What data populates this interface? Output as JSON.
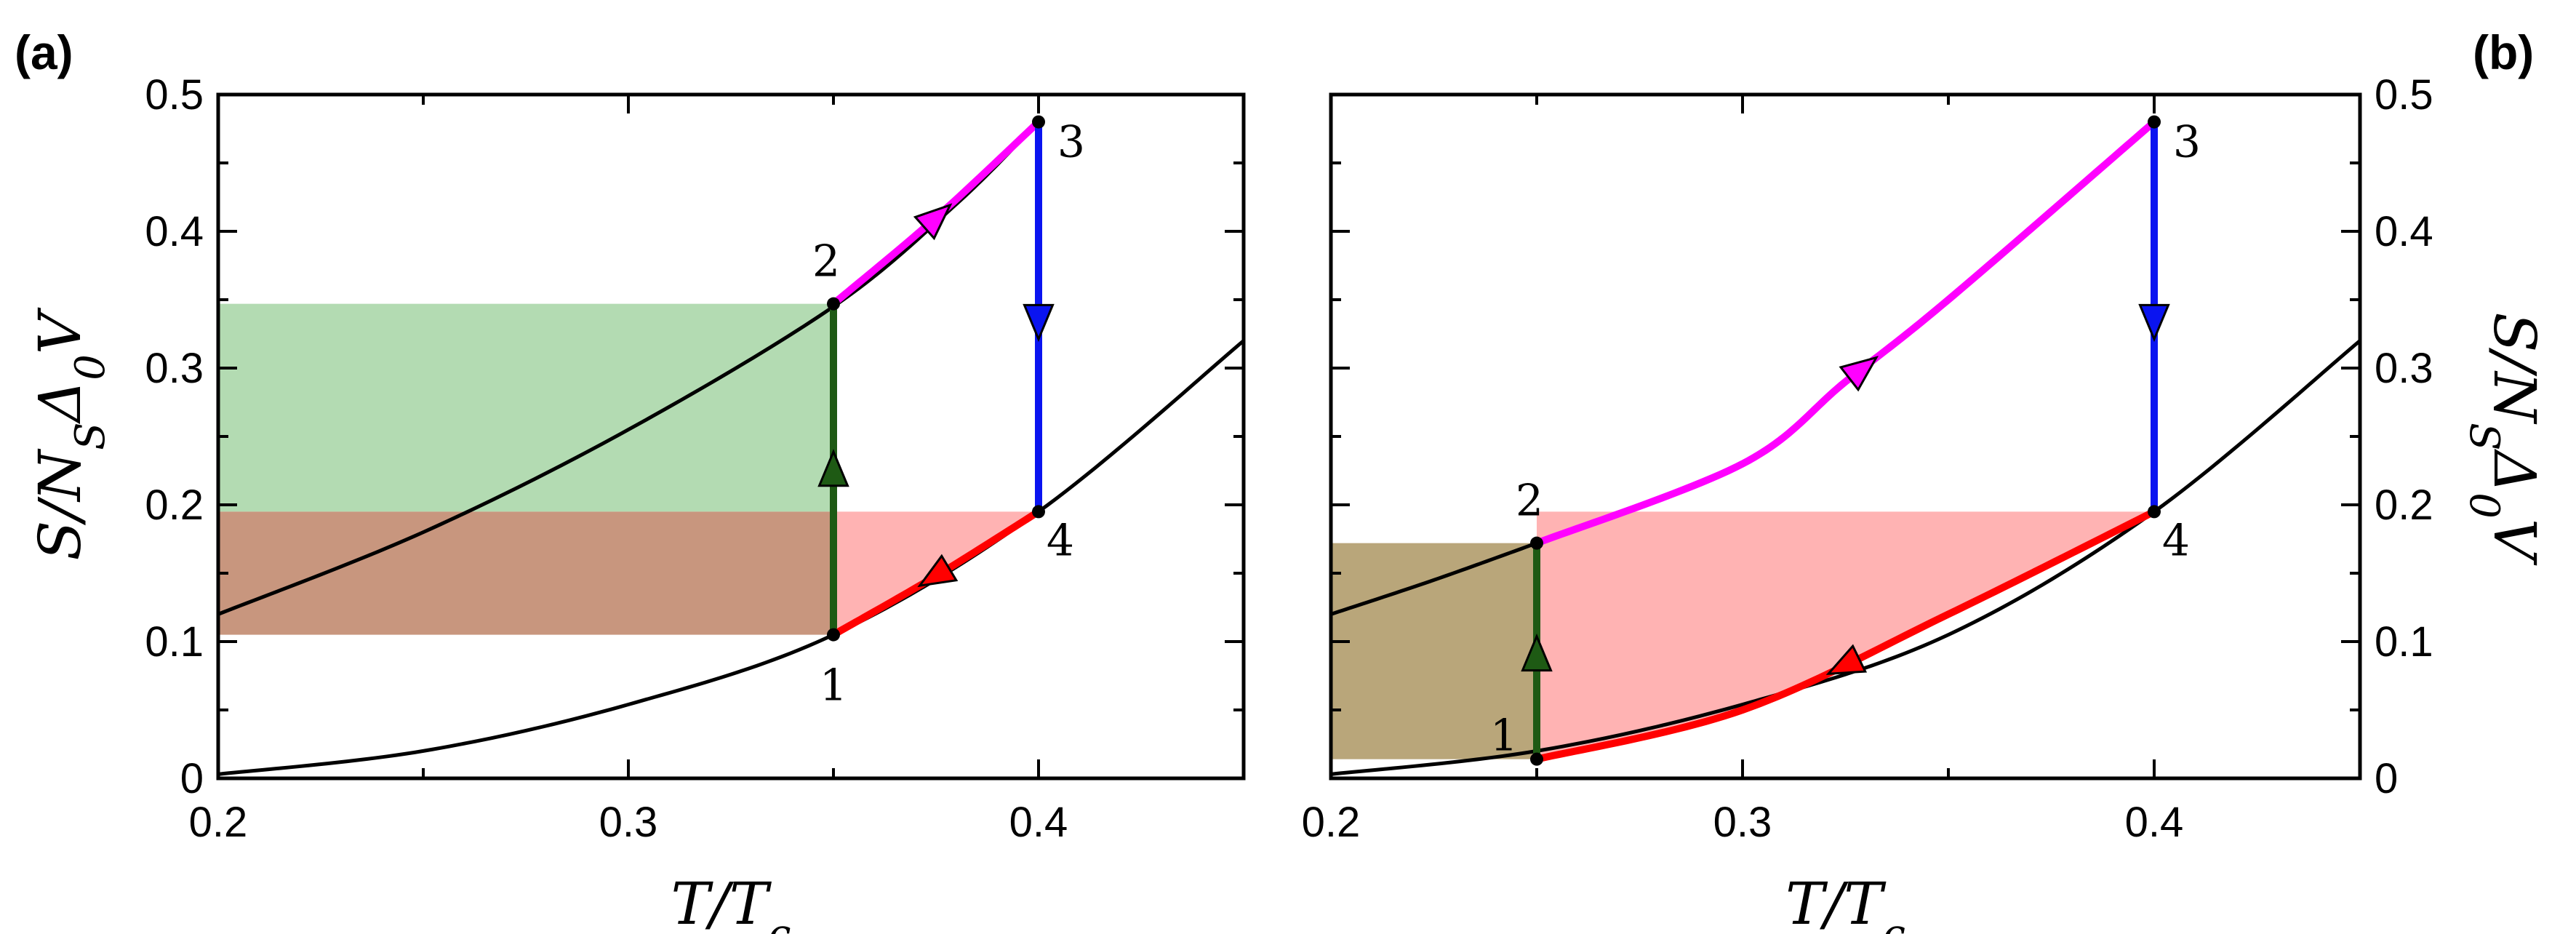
{
  "chart_data": [
    {
      "type": "line",
      "panel_label": "(a)",
      "xlabel": "T/T_c",
      "ylabel": "S/N_SΔ_0V",
      "xlim": [
        0.2,
        0.45
      ],
      "ylim": [
        0,
        0.5
      ],
      "xticks": [
        "0.2",
        "0.3",
        "0.4"
      ],
      "yticks": [
        "0",
        "0.1",
        "0.2",
        "0.3",
        "0.4",
        "0.5"
      ],
      "background_curves": [
        {
          "name": "",
          "x": [
            0.2,
            0.25,
            0.3,
            0.35,
            0.4,
            0.45
          ],
          "y": [
            0.003,
            0.02,
            0.054,
            0.105,
            0.195,
            0.32
          ]
        },
        {
          "name": "",
          "x": [
            0.2,
            0.25,
            0.3,
            0.35,
            0.38,
            0.4
          ],
          "y": [
            0.12,
            0.18,
            0.255,
            0.345,
            0.42,
            0.48
          ]
        }
      ],
      "cycle_segments": [
        {
          "from": "1",
          "to": "2",
          "color": "#1e5a14",
          "x": [
            0.35,
            0.35
          ],
          "y": [
            0.105,
            0.347
          ],
          "arrow_at": 0.225,
          "arrow_dir": "up"
        },
        {
          "from": "2",
          "to": "3",
          "color": "#ff00ff",
          "x": [
            0.35,
            0.375,
            0.4
          ],
          "y": [
            0.347,
            0.41,
            0.48
          ],
          "arrow_at": 0.5,
          "arrow_dir": "forward"
        },
        {
          "from": "3",
          "to": "4",
          "color": "#0a14f0",
          "x": [
            0.4,
            0.4
          ],
          "y": [
            0.48,
            0.195
          ],
          "arrow_at": 0.335,
          "arrow_dir": "down"
        },
        {
          "from": "4",
          "to": "1",
          "color": "#ff0000",
          "x": [
            0.4,
            0.375,
            0.35
          ],
          "y": [
            0.195,
            0.148,
            0.105
          ],
          "arrow_at": 0.5,
          "arrow_dir": "backward"
        }
      ],
      "points": [
        {
          "label": "1",
          "x": 0.35,
          "y": 0.105
        },
        {
          "label": "2",
          "x": 0.35,
          "y": 0.347
        },
        {
          "label": "3",
          "x": 0.4,
          "y": 0.48
        },
        {
          "label": "4",
          "x": 0.4,
          "y": 0.195
        }
      ],
      "shaded_regions": [
        {
          "color": "#b3dbb2",
          "x": [
            0.2,
            0.35
          ],
          "y": [
            0.195,
            0.347
          ]
        },
        {
          "color": "#c8967e",
          "x": [
            0.2,
            0.35
          ],
          "y": [
            0.105,
            0.195
          ]
        },
        {
          "color": "#ffb3b3",
          "kind": "under-path",
          "x_from": 0.35,
          "x_to": 0.4,
          "top": 0.195
        }
      ]
    },
    {
      "type": "line",
      "panel_label": "(b)",
      "xlabel": "T/T_c",
      "ylabel": "S/N_SΔ_0V",
      "xlim": [
        0.2,
        0.45
      ],
      "ylim": [
        0,
        0.5
      ],
      "xticks": [
        "0.2",
        "0.3",
        "0.4"
      ],
      "yticks": [
        "0",
        "0.1",
        "0.2",
        "0.3",
        "0.4",
        "0.5"
      ],
      "background_curves": [
        {
          "name": "",
          "x": [
            0.2,
            0.25,
            0.3,
            0.35,
            0.4,
            0.45
          ],
          "y": [
            0.003,
            0.02,
            0.054,
            0.105,
            0.195,
            0.32
          ]
        },
        {
          "name": "",
          "x": [
            0.2,
            0.225,
            0.25
          ],
          "y": [
            0.12,
            0.145,
            0.172
          ]
        }
      ],
      "cycle_segments": [
        {
          "from": "1",
          "to": "2",
          "color": "#1e5a14",
          "x": [
            0.25,
            0.25
          ],
          "y": [
            0.014,
            0.172
          ],
          "arrow_at": 0.09,
          "arrow_dir": "up"
        },
        {
          "from": "2",
          "to": "3",
          "color": "#ff00ff",
          "x": [
            0.25,
            0.3,
            0.325,
            0.35,
            0.4
          ],
          "y": [
            0.172,
            0.23,
            0.29,
            0.35,
            0.48
          ],
          "arrow_at": 0.55,
          "arrow_dir": "forward"
        },
        {
          "from": "3",
          "to": "4",
          "color": "#0a14f0",
          "x": [
            0.4,
            0.4
          ],
          "y": [
            0.48,
            0.195
          ],
          "arrow_at": 0.335,
          "arrow_dir": "down"
        },
        {
          "from": "4",
          "to": "1",
          "color": "#ff0000",
          "x": [
            0.4,
            0.35,
            0.3,
            0.25
          ],
          "y": [
            0.195,
            0.12,
            0.05,
            0.014
          ],
          "arrow_at": 0.5,
          "arrow_dir": "backward"
        }
      ],
      "points": [
        {
          "label": "1",
          "x": 0.25,
          "y": 0.014
        },
        {
          "label": "2",
          "x": 0.25,
          "y": 0.172
        },
        {
          "label": "3",
          "x": 0.4,
          "y": 0.48
        },
        {
          "label": "4",
          "x": 0.4,
          "y": 0.195
        }
      ],
      "shaded_regions": [
        {
          "color": "#b9a67a",
          "x": [
            0.2,
            0.25
          ],
          "y": [
            0.014,
            0.172
          ]
        },
        {
          "color": "#ffb3b3",
          "kind": "under-path",
          "x_from": 0.25,
          "x_to": 0.4,
          "top": 0.195
        }
      ]
    }
  ]
}
